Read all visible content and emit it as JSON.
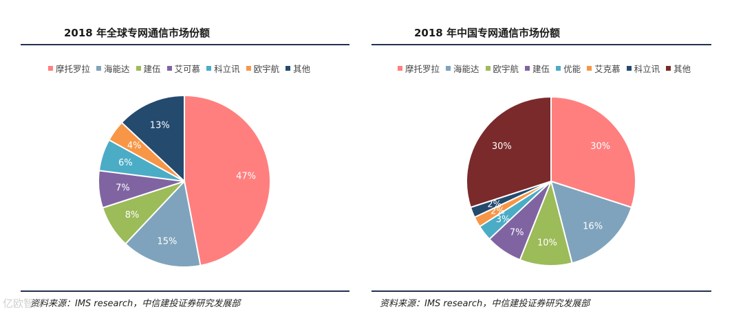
{
  "chart_data": [
    {
      "type": "pie",
      "title": "2018 年全球专网通信市场份额",
      "categories": [
        "摩托罗拉",
        "海能达",
        "建伍",
        "艾可慕",
        "科立讯",
        "欧宇航",
        "其他"
      ],
      "values": [
        47,
        15,
        8,
        7,
        6,
        4,
        13
      ],
      "labels": [
        "47%",
        "15%",
        "8%",
        "7%",
        "6%",
        "4%",
        "13%"
      ],
      "colors": [
        "#FF7F7F",
        "#7FA3BC",
        "#9CBB59",
        "#8064A2",
        "#4BACC6",
        "#F79646",
        "#244A6E"
      ],
      "legend": "top",
      "source": "资料来源：IMS research，中信建投证券研究发展部"
    },
    {
      "type": "pie",
      "title": "2018 年中国专网通信市场份额",
      "categories": [
        "摩托罗拉",
        "海能达",
        "欧宇航",
        "建伍",
        "优能",
        "艾克慕",
        "科立讯",
        "其他"
      ],
      "values": [
        30,
        16,
        10,
        7,
        3,
        2,
        2,
        30
      ],
      "labels": [
        "30%",
        "16%",
        "10%",
        "7%",
        "3%",
        "2%",
        "2%",
        "30%"
      ],
      "colors": [
        "#FF7F7F",
        "#7FA3BC",
        "#9CBB59",
        "#8064A2",
        "#4BACC6",
        "#F79646",
        "#244A6E",
        "#7A2A2A"
      ],
      "legend": "top",
      "source": "资料来源：IMS research，中信建投证券研究发展部"
    }
  ],
  "watermark": "亿欧智库"
}
